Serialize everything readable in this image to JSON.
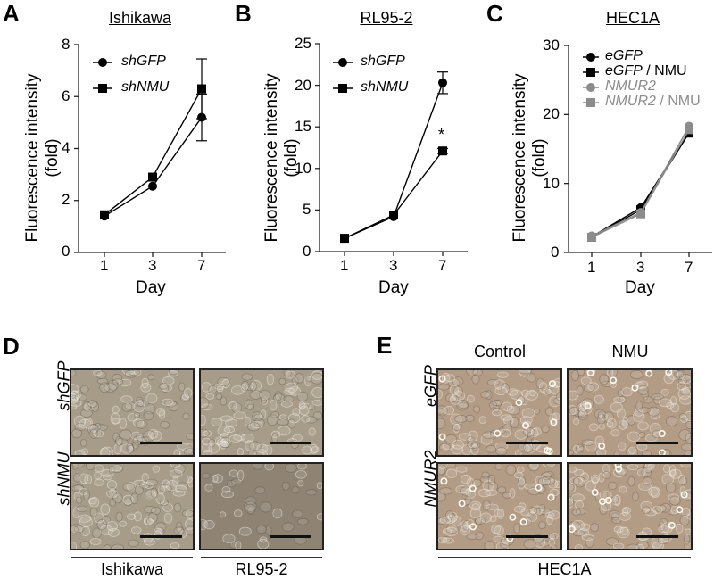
{
  "panels": {
    "A": {
      "letter": "A",
      "title": "Ishikawa"
    },
    "B": {
      "letter": "B",
      "title": "RL95-2"
    },
    "C": {
      "letter": "C",
      "title": "HEC1A"
    },
    "D": {
      "letter": "D",
      "row_labels": [
        "shGFP",
        "shNMU"
      ],
      "col_labels": [
        "Ishikawa",
        "RL95-2"
      ]
    },
    "E": {
      "letter": "E",
      "row_labels": [
        "eGFP",
        "NMUR2"
      ],
      "col_labels": [
        "Control",
        "NMU"
      ],
      "group_label": "HEC1A"
    }
  },
  "axis": {
    "ylabel_line1": "Fluorescence intensity",
    "ylabel_line2": "(fold)",
    "xlabel": "Day"
  },
  "chart_data": [
    {
      "type": "line",
      "title": "Ishikawa",
      "xlabel": "Day",
      "ylabel": "Fluorescence intensity (fold)",
      "categories": [
        "1",
        "3",
        "7"
      ],
      "yticks": [
        "0",
        "2",
        "4",
        "6",
        "8"
      ],
      "ylim": [
        0,
        8
      ],
      "series": [
        {
          "name": "shGFP",
          "marker": "circle",
          "color": "#000000",
          "values": [
            1.4,
            2.55,
            5.2
          ],
          "error": [
            0,
            0,
            0.9
          ]
        },
        {
          "name": "shNMU",
          "marker": "square",
          "color": "#000000",
          "values": [
            1.45,
            2.9,
            6.3
          ],
          "error": [
            0,
            0,
            1.15
          ]
        }
      ],
      "legend_position": "upper-left"
    },
    {
      "type": "line",
      "title": "RL95-2",
      "xlabel": "Day",
      "ylabel": "Fluorescence intensity (fold)",
      "categories": [
        "1",
        "3",
        "7"
      ],
      "yticks": [
        "0",
        "5",
        "10",
        "15",
        "20",
        "25"
      ],
      "ylim": [
        0,
        25
      ],
      "series": [
        {
          "name": "shGFP",
          "marker": "circle",
          "color": "#000000",
          "values": [
            1.6,
            4.2,
            20.3
          ],
          "error": [
            0,
            0,
            1.3
          ]
        },
        {
          "name": "shNMU",
          "marker": "square",
          "color": "#000000",
          "values": [
            1.6,
            4.4,
            12.1
          ],
          "error": [
            0,
            0,
            0.3
          ]
        }
      ],
      "annotations": [
        {
          "text": "*",
          "x": "7",
          "y": 13.8
        }
      ],
      "legend_position": "upper-left"
    },
    {
      "type": "line",
      "title": "HEC1A",
      "xlabel": "Day",
      "ylabel": "Fluorescence intensity (fold)",
      "categories": [
        "1",
        "3",
        "7"
      ],
      "yticks": [
        "0",
        "10",
        "20",
        "30"
      ],
      "ylim": [
        0,
        30
      ],
      "series": [
        {
          "name": "eGFP",
          "marker": "circle",
          "color": "#000000",
          "values": [
            2.3,
            6.5,
            17.5
          ]
        },
        {
          "name": "eGFP / NMU",
          "marker": "square",
          "color": "#000000",
          "values": [
            2.2,
            6.2,
            17.3
          ]
        },
        {
          "name": "NMUR2",
          "marker": "circle",
          "color": "#8c8c8c",
          "values": [
            2.4,
            5.8,
            18.3
          ]
        },
        {
          "name": "NMUR2 / NMU",
          "marker": "square",
          "color": "#8c8c8c",
          "values": [
            2.2,
            5.6,
            17.8
          ]
        }
      ],
      "legend_position": "upper-left"
    }
  ],
  "legend_C": [
    {
      "italic": "eGFP",
      "plain": ""
    },
    {
      "italic": "eGFP",
      "plain": " / NMU"
    },
    {
      "italic": "NMUR2",
      "plain": ""
    },
    {
      "italic": "NMUR2",
      "plain": " / NMU"
    }
  ],
  "colors": {
    "black_series": "#000000",
    "gray_series": "#8c8c8c",
    "micrograph_D": "#a79c8a",
    "micrograph_E": "#b39c86"
  }
}
